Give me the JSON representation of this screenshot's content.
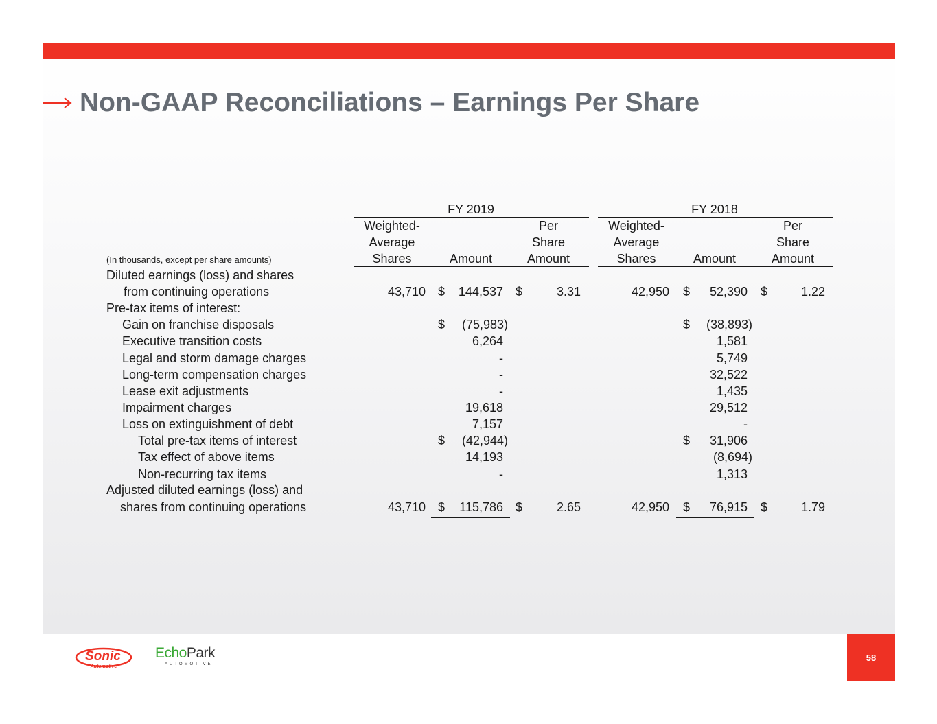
{
  "header": {
    "title": "Non-GAAP Reconciliations – Earnings Per Share"
  },
  "table": {
    "periods": [
      "FY 2019",
      "FY 2018"
    ],
    "col_headers": {
      "weighted_line1": "Weighted-",
      "weighted_line2": "Average",
      "weighted_line3": "Shares",
      "amount": "Amount",
      "per_line1": "Per",
      "per_line2": "Share",
      "per_line3": "Amount"
    },
    "units_note": "(In thousands, except per share amounts)",
    "currency": "$",
    "rows": [
      {
        "label": "Diluted earnings (loss) and shares"
      },
      {
        "label": "from continuing operations",
        "fy2019": {
          "shares": "43,710",
          "amount": "144,537",
          "per_share": "3.31"
        },
        "fy2018": {
          "shares": "42,950",
          "amount": "52,390",
          "per_share": "1.22"
        }
      },
      {
        "label": "Pre-tax items of interest:"
      },
      {
        "label": "Gain on franchise disposals",
        "fy2019": {
          "amount": "(75,983)"
        },
        "fy2018": {
          "amount": "(38,893)"
        }
      },
      {
        "label": "Executive transition costs",
        "fy2019": {
          "amount": "6,264"
        },
        "fy2018": {
          "amount": "1,581"
        }
      },
      {
        "label": "Legal and storm damage charges",
        "fy2019": {
          "amount": "-"
        },
        "fy2018": {
          "amount": "5,749"
        }
      },
      {
        "label": "Long-term compensation charges",
        "fy2019": {
          "amount": "-"
        },
        "fy2018": {
          "amount": "32,522"
        }
      },
      {
        "label": "Lease exit adjustments",
        "fy2019": {
          "amount": "-"
        },
        "fy2018": {
          "amount": "1,435"
        }
      },
      {
        "label": "Impairment charges",
        "fy2019": {
          "amount": "19,618"
        },
        "fy2018": {
          "amount": "29,512"
        }
      },
      {
        "label": "Loss on extinguishment of debt",
        "fy2019": {
          "amount": "7,157"
        },
        "fy2018": {
          "amount": "-"
        }
      },
      {
        "label": "Total pre-tax items of interest",
        "fy2019": {
          "amount": "(42,944)"
        },
        "fy2018": {
          "amount": "31,906"
        }
      },
      {
        "label": "Tax effect of above items",
        "fy2019": {
          "amount": "14,193"
        },
        "fy2018": {
          "amount": "(8,694)"
        }
      },
      {
        "label": "Non-recurring tax items",
        "fy2019": {
          "amount": "-"
        },
        "fy2018": {
          "amount": "1,313"
        }
      },
      {
        "label": "Adjusted diluted earnings (loss) and"
      },
      {
        "label": "shares from continuing operations",
        "fy2019": {
          "shares": "43,710",
          "amount": "115,786",
          "per_share": "2.65"
        },
        "fy2018": {
          "shares": "42,950",
          "amount": "76,915",
          "per_share": "1.79"
        }
      }
    ]
  },
  "footer": {
    "sonic_logo_text": "Sonic",
    "sonic_logo_sub": "Automotive",
    "echopark_echo": "Echo",
    "echopark_park": "Park",
    "echopark_sub": "AUTOMOTIVE",
    "page_number": "58"
  },
  "colors": {
    "brand_red": "#ee3124",
    "title_gray": "#656b73",
    "echopark_green": "#3aa935"
  },
  "icons": {
    "title_arrow": "right-arrow-icon"
  }
}
